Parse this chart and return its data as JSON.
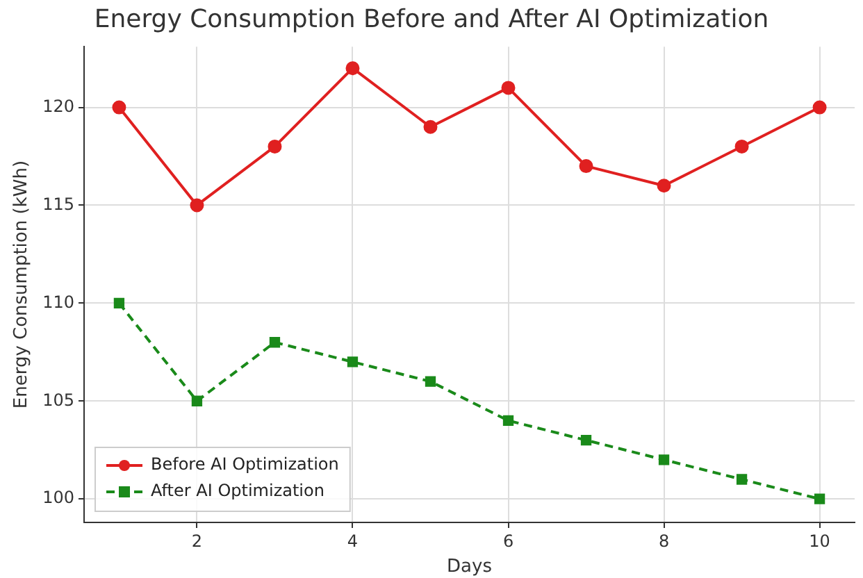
{
  "chart_data": {
    "type": "line",
    "title": "Energy Consumption Before and After AI Optimization",
    "xlabel": "Days",
    "ylabel": "Energy Consumption (kWh)",
    "x": [
      1,
      2,
      3,
      4,
      5,
      6,
      7,
      8,
      9,
      10
    ],
    "series": [
      {
        "name": "Before AI Optimization",
        "color": "#e02020",
        "marker": "circle",
        "line_style": "solid",
        "values": [
          120,
          115,
          118,
          122,
          119,
          121,
          117,
          116,
          118,
          120
        ]
      },
      {
        "name": "After AI Optimization",
        "color": "#1a8a1a",
        "marker": "square",
        "line_style": "dashed",
        "values": [
          110,
          105,
          108,
          107,
          106,
          104,
          103,
          102,
          101,
          100
        ]
      }
    ],
    "xlim": [
      0.55,
      10.45
    ],
    "xticks": [
      2,
      4,
      6,
      8,
      10
    ],
    "ylim": [
      98.8,
      123.1
    ],
    "yticks": [
      100,
      105,
      110,
      115,
      120
    ],
    "grid": true,
    "legend": "bottom left"
  }
}
